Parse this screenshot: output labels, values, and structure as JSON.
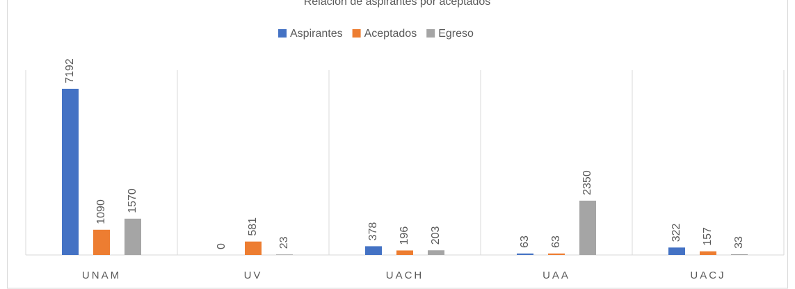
{
  "chart_data": {
    "type": "bar",
    "title": "Relación de aspirantes por aceptados",
    "categories": [
      "UNAM",
      "UV",
      "UACH",
      "UAA",
      "UACJ"
    ],
    "series": [
      {
        "name": "Aspirantes",
        "color": "#4472c4",
        "values": [
          7192,
          0,
          378,
          63,
          322
        ]
      },
      {
        "name": "Aceptados",
        "color": "#ed7d31",
        "values": [
          1090,
          581,
          196,
          63,
          157
        ]
      },
      {
        "name": "Egreso",
        "color": "#a5a5a5",
        "values": [
          1570,
          23,
          203,
          2350,
          33
        ]
      }
    ],
    "ylim": [
      0,
      8000
    ],
    "legend": "top"
  }
}
